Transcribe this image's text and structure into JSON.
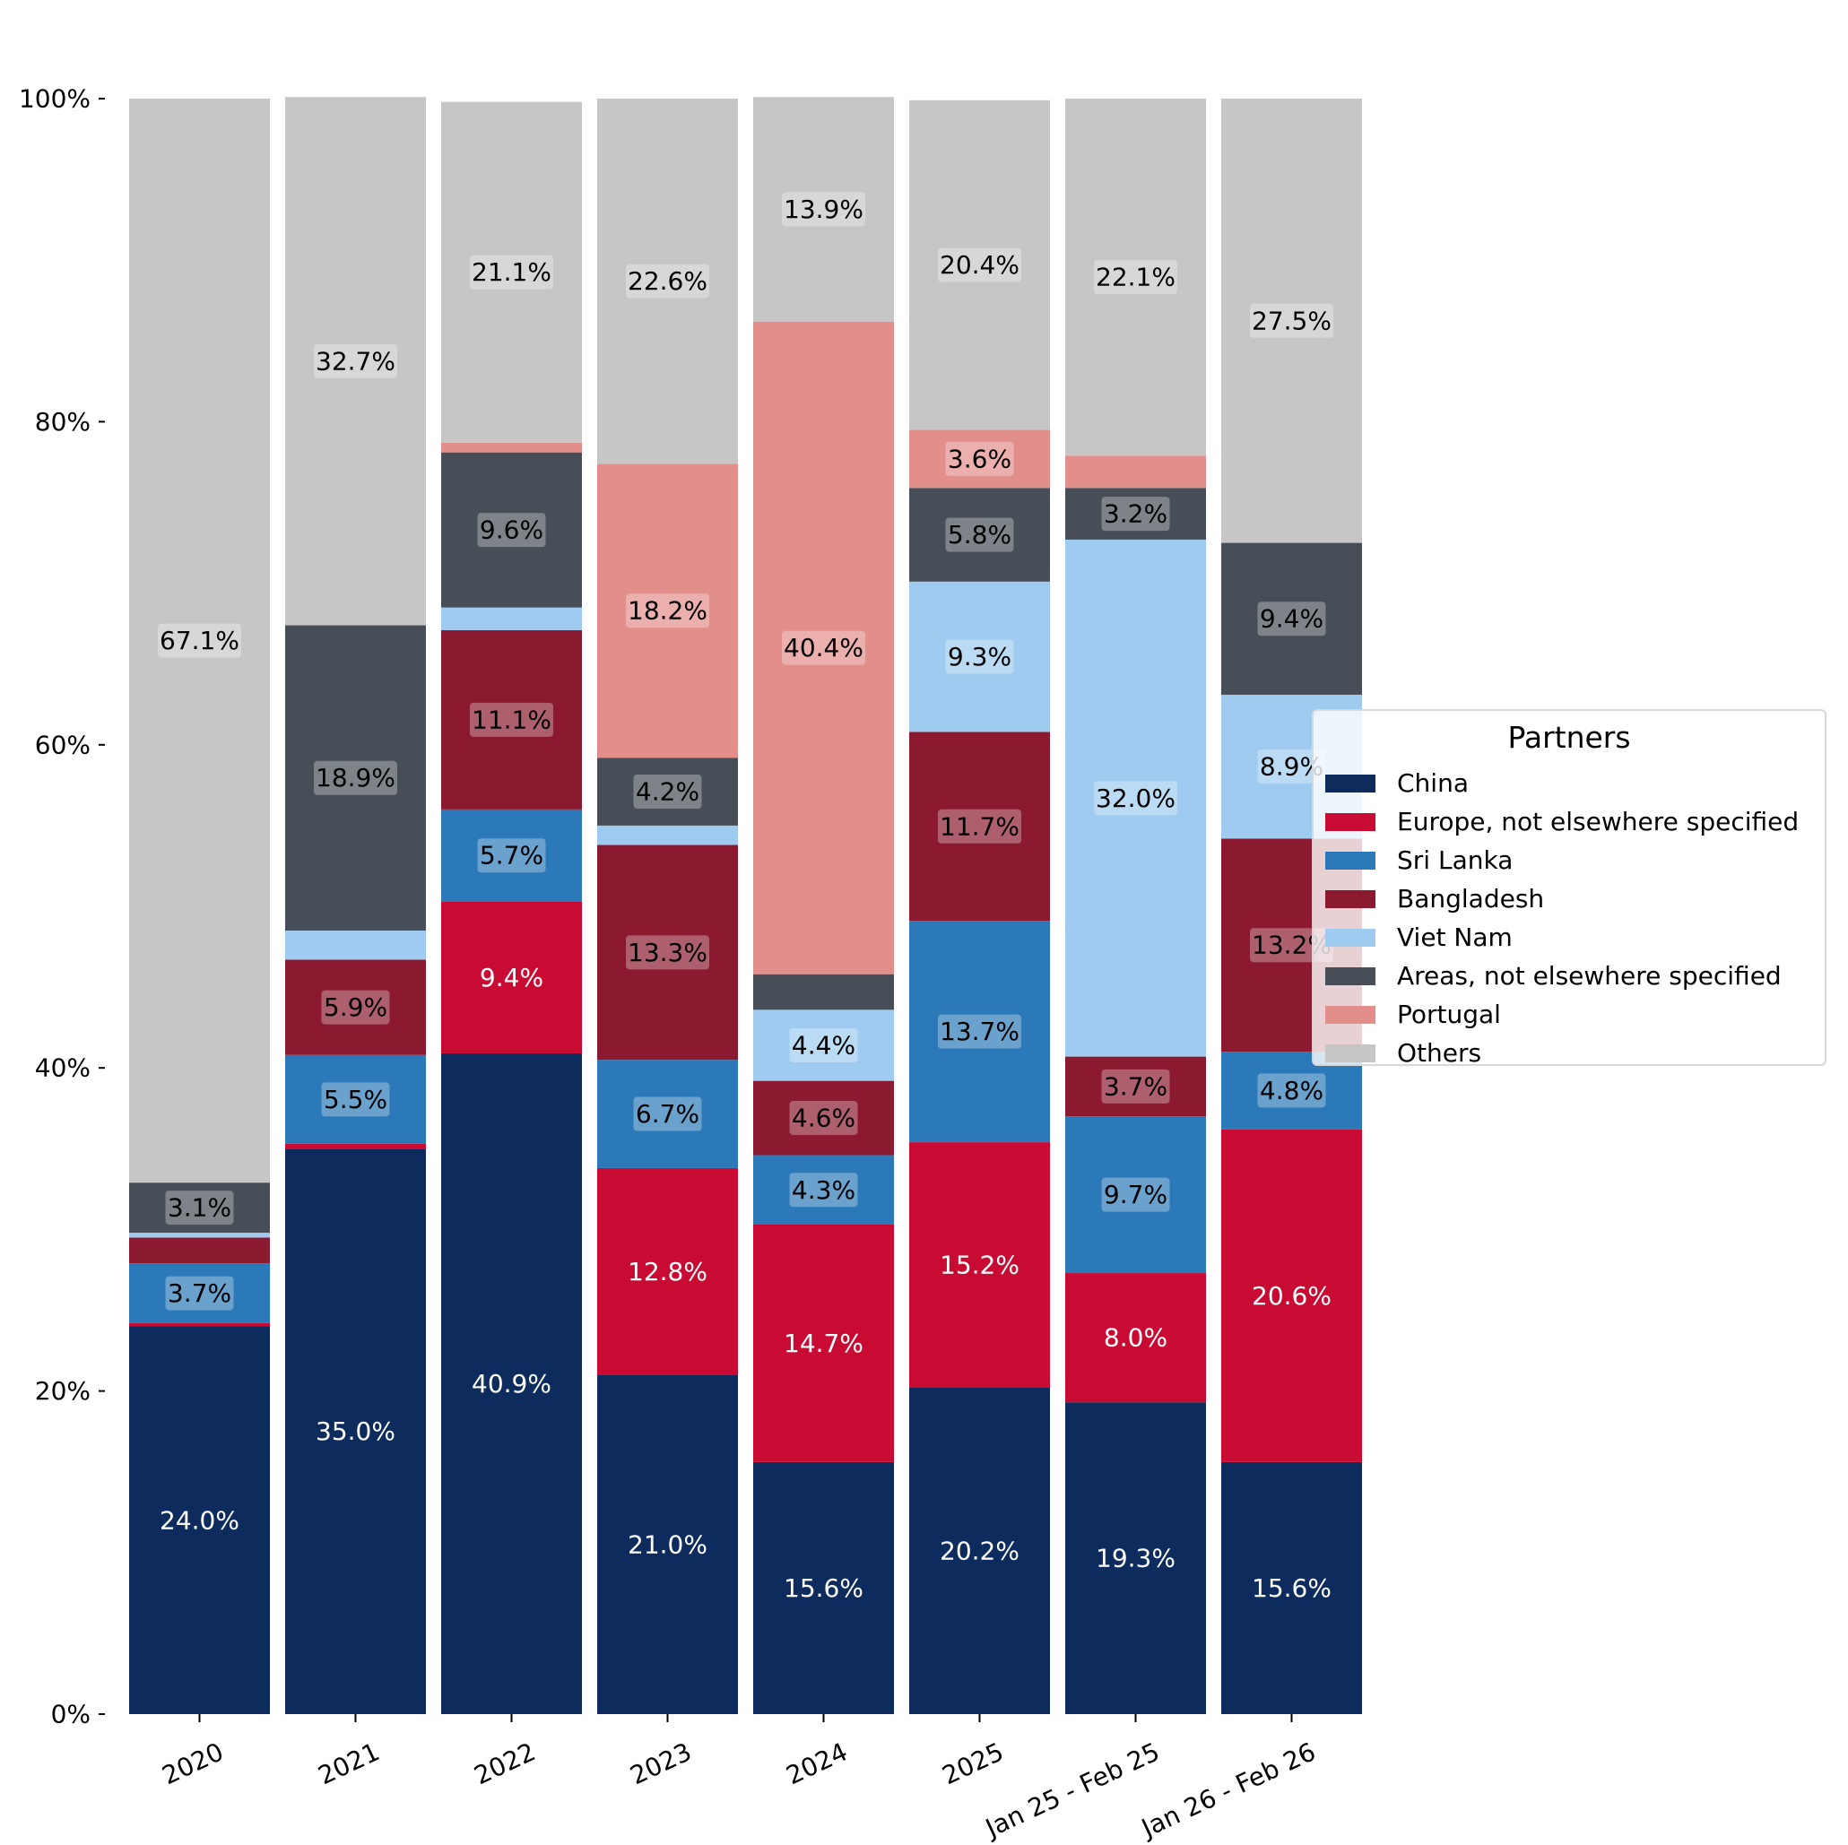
{
  "chart_data": {
    "type": "bar",
    "stacked": true,
    "categories": [
      "2020",
      "2021",
      "2022",
      "2023",
      "2024",
      "2025",
      "Jan 25 - Feb 25",
      "Jan 26 - Feb 26"
    ],
    "ylim": [
      0,
      100
    ],
    "yticks": [
      "0%",
      "20%",
      "40%",
      "60%",
      "80%",
      "100%"
    ],
    "ytick_values": [
      0,
      20,
      40,
      60,
      80,
      100
    ],
    "grid": false,
    "legend_title": "Partners",
    "legend_position": "center-right",
    "series": [
      {
        "name": "China",
        "color": "#0d2b5c",
        "label_color": "#ffffff",
        "label_box": false,
        "values": [
          24.0,
          35.0,
          40.9,
          21.0,
          15.6,
          20.2,
          19.3,
          15.6
        ],
        "labels": [
          "24.0%",
          "35.0%",
          "40.9%",
          "21.0%",
          "15.6%",
          "20.2%",
          "19.3%",
          "15.6%"
        ]
      },
      {
        "name": "Europe, not elsewhere specified",
        "color": "#c90b34",
        "label_color": "#ffffff",
        "label_box": false,
        "values": [
          0.2,
          0.3,
          9.4,
          12.8,
          14.7,
          15.2,
          8.0,
          20.6
        ],
        "labels": [
          "",
          "",
          "9.4%",
          "12.8%",
          "14.7%",
          "15.2%",
          "8.0%",
          "20.6%"
        ]
      },
      {
        "name": "Sri Lanka",
        "color": "#2b79b8",
        "label_color": "#000000",
        "label_box": true,
        "values": [
          3.7,
          5.5,
          5.7,
          6.7,
          4.3,
          13.7,
          9.7,
          4.8
        ],
        "labels": [
          "3.7%",
          "5.5%",
          "5.7%",
          "6.7%",
          "4.3%",
          "13.7%",
          "9.7%",
          "4.8%"
        ]
      },
      {
        "name": "Bangladesh",
        "color": "#8b1a30",
        "label_color": "#000000",
        "label_box": true,
        "values": [
          1.6,
          5.9,
          11.1,
          13.3,
          4.6,
          11.7,
          3.7,
          13.2
        ],
        "labels": [
          "",
          "5.9%",
          "11.1%",
          "13.3%",
          "4.6%",
          "11.7%",
          "3.7%",
          "13.2%"
        ]
      },
      {
        "name": "Viet Nam",
        "color": "#9ecbef",
        "label_color": "#000000",
        "label_box": true,
        "values": [
          0.3,
          1.8,
          1.4,
          1.2,
          4.4,
          9.3,
          32.0,
          8.9
        ],
        "labels": [
          "",
          "",
          "",
          "",
          "4.4%",
          "9.3%",
          "32.0%",
          "8.9%"
        ]
      },
      {
        "name": "Areas, not elsewhere specified",
        "color": "#474e58",
        "label_color": "#000000",
        "label_box": true,
        "values": [
          3.1,
          18.9,
          9.6,
          4.2,
          2.2,
          5.8,
          3.2,
          9.4
        ],
        "labels": [
          "3.1%",
          "18.9%",
          "9.6%",
          "4.2%",
          "",
          "5.8%",
          "3.2%",
          "9.4%"
        ]
      },
      {
        "name": "Portugal",
        "color": "#e28f8c",
        "label_color": "#000000",
        "label_box": true,
        "values": [
          0.0,
          0.0,
          0.6,
          18.2,
          40.4,
          3.6,
          2.0,
          0.0
        ],
        "labels": [
          "",
          "",
          "",
          "18.2%",
          "40.4%",
          "3.6%",
          "",
          ""
        ]
      },
      {
        "name": "Others",
        "color": "#c6c6c6",
        "label_color": "#000000",
        "label_box": true,
        "values": [
          67.1,
          32.7,
          21.1,
          22.6,
          13.9,
          20.4,
          22.1,
          27.5
        ],
        "labels": [
          "67.1%",
          "32.7%",
          "21.1%",
          "22.6%",
          "13.9%",
          "20.4%",
          "22.1%",
          "27.5%"
        ]
      }
    ]
  }
}
